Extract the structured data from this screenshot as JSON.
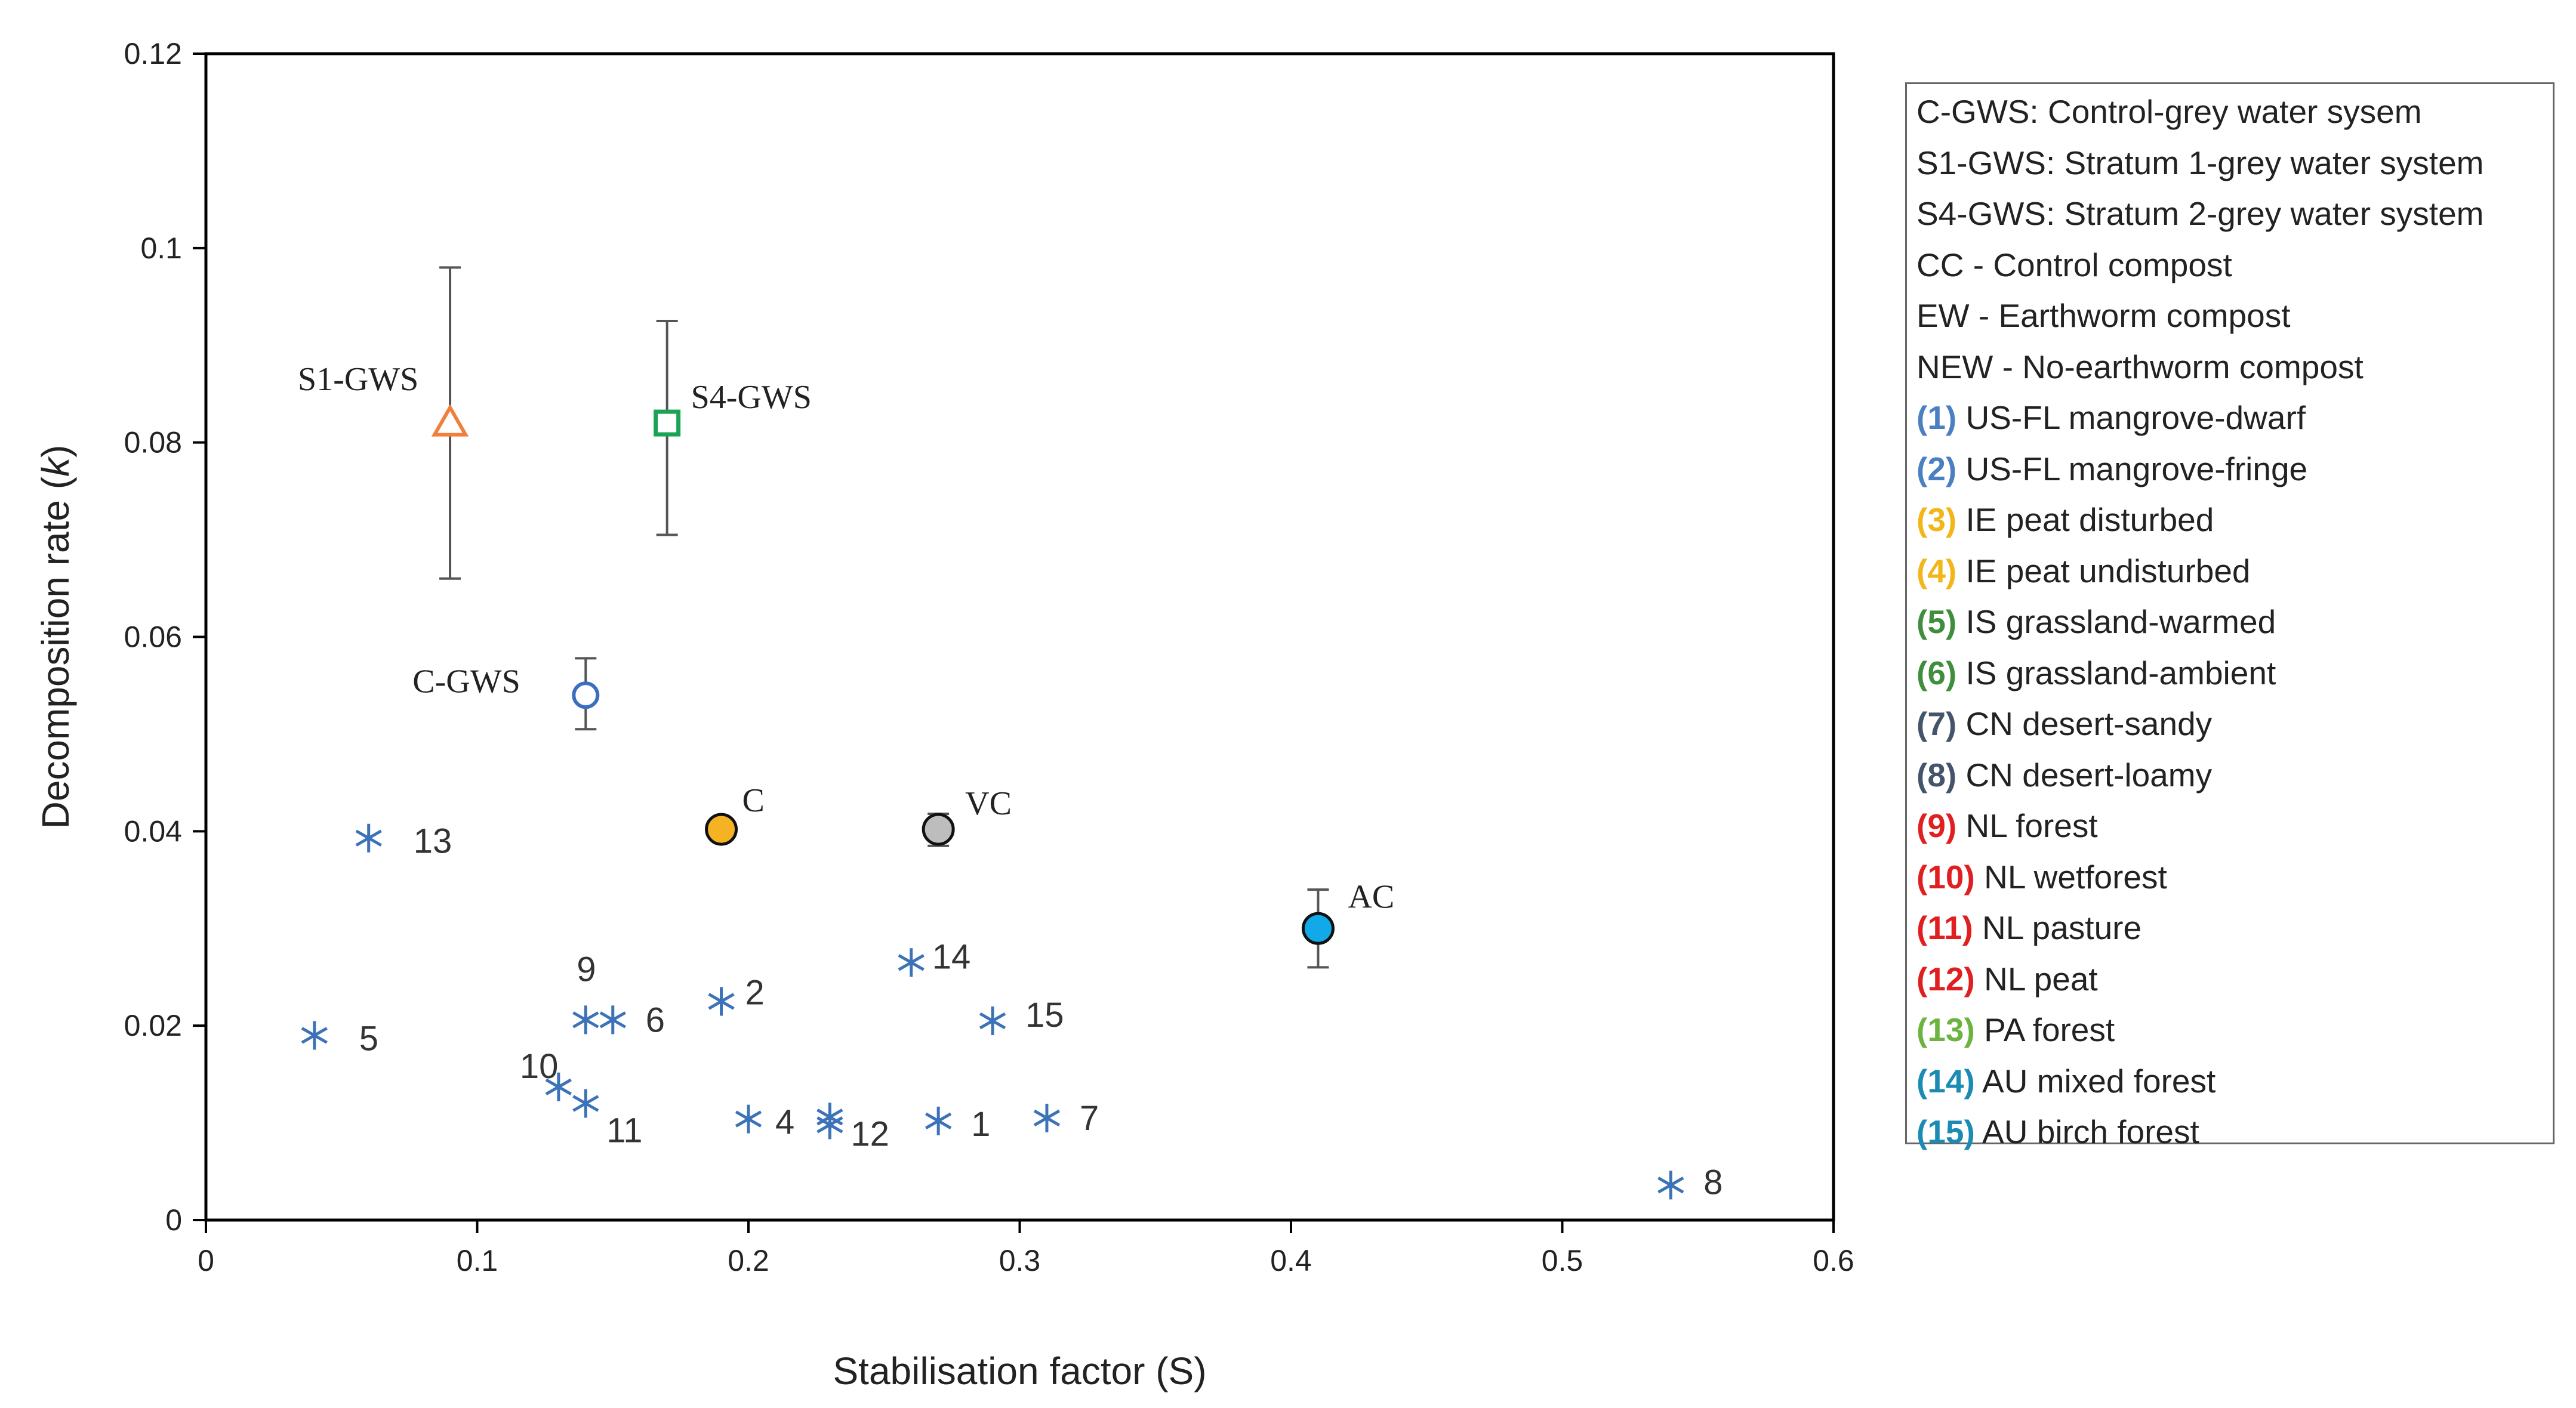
{
  "chart_data": {
    "type": "scatter",
    "xlabel": "Stabilisation factor (S)",
    "ylabel": "Decomposition rate (k)",
    "xlim": [
      0,
      0.6
    ],
    "ylim": [
      0,
      0.12
    ],
    "x_ticks": [
      0,
      0.1,
      0.2,
      0.3,
      0.4,
      0.5,
      0.6
    ],
    "x_tick_labels": [
      "0",
      "0.1",
      "0.2",
      "0.3",
      "0.4",
      "0.5",
      "0.6"
    ],
    "y_ticks": [
      0,
      0.02,
      0.04,
      0.06,
      0.08,
      0.1,
      0.12
    ],
    "y_tick_labels": [
      "0",
      "0.02",
      "0.04",
      "0.06",
      "0.08",
      "0.1",
      "0.12"
    ],
    "grid": false,
    "legend_position": "right",
    "series": [
      {
        "name": "S1-GWS",
        "marker": "triangle-open",
        "color": "#F07F3C",
        "x": 0.09,
        "y": 0.082,
        "y_err_low": 0.066,
        "y_err_high": 0.098
      },
      {
        "name": "S4-GWS",
        "marker": "square-open",
        "color": "#1AA354",
        "x": 0.17,
        "y": 0.082,
        "y_err_low": 0.0705,
        "y_err_high": 0.0925
      },
      {
        "name": "C-GWS",
        "marker": "circle-open",
        "color": "#3A6FBF",
        "x": 0.14,
        "y": 0.054,
        "y_err_low": 0.0505,
        "y_err_high": 0.0578
      },
      {
        "name": "C",
        "marker": "circle-filled",
        "color": "#F5B223",
        "x": 0.19,
        "y": 0.0402
      },
      {
        "name": "VC",
        "marker": "circle-filled",
        "color": "#BDBDBD",
        "x": 0.27,
        "y": 0.0402,
        "y_err_low": 0.0385,
        "y_err_high": 0.0418
      },
      {
        "name": "AC",
        "marker": "circle-filled",
        "color": "#12A9E8",
        "x": 0.41,
        "y": 0.03,
        "y_err_low": 0.026,
        "y_err_high": 0.034
      }
    ],
    "literature_points": {
      "marker": "asterisk",
      "color": "#3C73B8",
      "points": [
        {
          "label": "1",
          "x": 0.27,
          "y": 0.0102
        },
        {
          "label": "2",
          "x": 0.19,
          "y": 0.0225
        },
        {
          "label": "4",
          "x": 0.2,
          "y": 0.0104
        },
        {
          "label": "5",
          "x": 0.04,
          "y": 0.019
        },
        {
          "label": "6",
          "x": 0.15,
          "y": 0.0206
        },
        {
          "label": "7",
          "x": 0.31,
          "y": 0.0105
        },
        {
          "label": "8",
          "x": 0.54,
          "y": 0.0036
        },
        {
          "label": "9",
          "x": 0.14,
          "y": 0.0206
        },
        {
          "label": "10",
          "x": 0.13,
          "y": 0.0137
        },
        {
          "label": "11",
          "x": 0.14,
          "y": 0.012
        },
        {
          "label": "12",
          "x": 0.23,
          "y": 0.0098
        },
        {
          "label": "13",
          "x": 0.06,
          "y": 0.0393
        },
        {
          "label": "14",
          "x": 0.26,
          "y": 0.0265
        },
        {
          "label": "15",
          "x": 0.29,
          "y": 0.0205
        },
        {
          "label": "",
          "x": 0.23,
          "y": 0.0106
        }
      ]
    }
  },
  "legend": {
    "items": [
      {
        "num": "",
        "text": "C-GWS: Control-grey water sysem",
        "num_color": "#222222"
      },
      {
        "num": "",
        "text": "S1-GWS: Stratum 1-grey water system",
        "num_color": "#222222"
      },
      {
        "num": "",
        "text": "S4-GWS: Stratum 2-grey water system",
        "num_color": "#222222"
      },
      {
        "num": "",
        "text": "CC - Control compost",
        "num_color": "#222222"
      },
      {
        "num": "",
        "text": "EW - Earthworm compost",
        "num_color": "#222222"
      },
      {
        "num": "",
        "text": "NEW - No-earthworm compost",
        "num_color": "#222222"
      },
      {
        "num": "(1)",
        "text": " US-FL mangrove-dwarf",
        "num_color": "#4A7FC1"
      },
      {
        "num": "(2)",
        "text": " US-FL mangrove-fringe",
        "num_color": "#4A7FC1"
      },
      {
        "num": "(3)",
        "text": " IE peat disturbed",
        "num_color": "#F2B619"
      },
      {
        "num": "(4)",
        "text": " IE peat undisturbed",
        "num_color": "#F2B619"
      },
      {
        "num": "(5)",
        "text": " IS grassland-warmed",
        "num_color": "#3E8E3E"
      },
      {
        "num": "(6)",
        "text": " IS grassland-ambient",
        "num_color": "#3E8E3E"
      },
      {
        "num": "(7)",
        "text": " CN desert-sandy",
        "num_color": "#44546A"
      },
      {
        "num": "(8)",
        "text": " CN desert-loamy",
        "num_color": "#44546A"
      },
      {
        "num": "(9)",
        "text": " NL forest",
        "num_color": "#E02020"
      },
      {
        "num": "(10)",
        "text": " NL wetforest",
        "num_color": "#E02020"
      },
      {
        "num": "(11)",
        "text": " NL pasture",
        "num_color": "#E02020"
      },
      {
        "num": "(12)",
        "text": " NL peat",
        "num_color": "#E02020"
      },
      {
        "num": "(13)",
        "text": " PA forest",
        "num_color": "#6DB33F"
      },
      {
        "num": "(14)",
        "text": " AU mixed forest",
        "num_color": "#1B8BB4"
      },
      {
        "num": "(15)",
        "text": " AU birch forest",
        "num_color": "#1B8BB4"
      }
    ]
  }
}
